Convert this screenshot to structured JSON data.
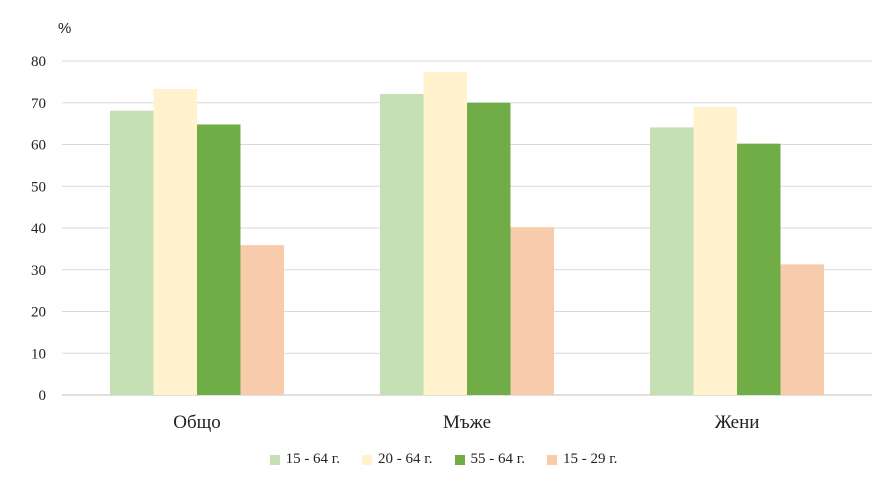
{
  "chart_data": {
    "type": "bar",
    "unit_label": "%",
    "categories": [
      "Общо",
      "Мъже",
      "Жени"
    ],
    "series": [
      {
        "name": "15 - 64 г.",
        "color": "#c5e0b4",
        "values": [
          68.1,
          72.1,
          64.1
        ]
      },
      {
        "name": "20 - 64 г.",
        "color": "#fff2cc",
        "values": [
          73.3,
          77.4,
          69.0
        ]
      },
      {
        "name": "55 - 64 г.",
        "color": "#70ad47",
        "values": [
          64.8,
          70.0,
          60.2
        ]
      },
      {
        "name": "15 - 29 г.",
        "color": "#f8cbad",
        "values": [
          35.9,
          40.2,
          31.3
        ]
      }
    ],
    "yticks": [
      "0",
      "10",
      "20",
      "30",
      "40",
      "50",
      "60",
      "70",
      "80"
    ],
    "ylim": [
      0,
      80
    ],
    "grid": true,
    "legend_position": "bottom"
  }
}
